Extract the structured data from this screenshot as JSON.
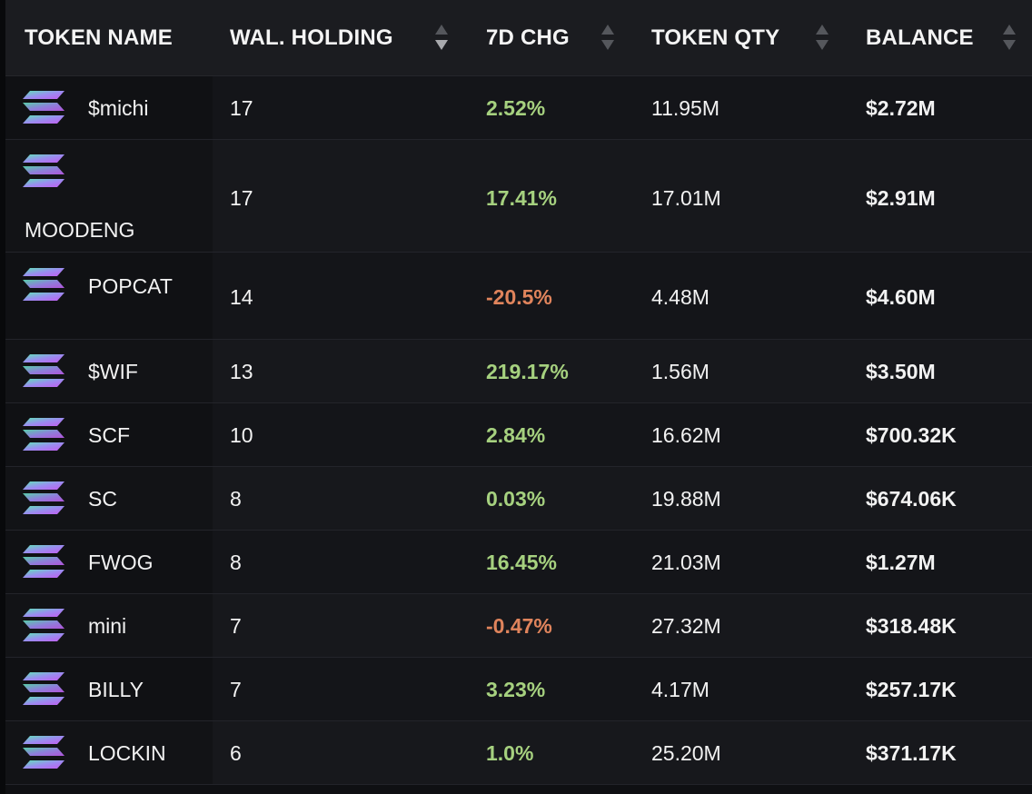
{
  "table": {
    "columns": [
      {
        "label": "TOKEN NAME",
        "sortable": false
      },
      {
        "label": "WAL. HOLDING",
        "sortable": true,
        "sorted": "desc"
      },
      {
        "label": "7D CHG",
        "sortable": true
      },
      {
        "label": "TOKEN QTY",
        "sortable": true
      },
      {
        "label": "BALANCE",
        "sortable": true
      }
    ],
    "rows": [
      {
        "name": "$michi",
        "holding": "17",
        "change": "2.52%",
        "trend": "up",
        "qty": "11.95M",
        "balance": "$2.72M"
      },
      {
        "name": "MOODENG",
        "holding": "17",
        "change": "17.41%",
        "trend": "up",
        "qty": "17.01M",
        "balance": "$2.91M"
      },
      {
        "name": "POPCAT",
        "holding": "14",
        "change": "-20.5%",
        "trend": "down",
        "qty": "4.48M",
        "balance": "$4.60M"
      },
      {
        "name": "$WIF",
        "holding": "13",
        "change": "219.17%",
        "trend": "up",
        "qty": "1.56M",
        "balance": "$3.50M"
      },
      {
        "name": "SCF",
        "holding": "10",
        "change": "2.84%",
        "trend": "up",
        "qty": "16.62M",
        "balance": "$700.32K"
      },
      {
        "name": "SC",
        "holding": "8",
        "change": "0.03%",
        "trend": "up",
        "qty": "19.88M",
        "balance": "$674.06K"
      },
      {
        "name": "FWOG",
        "holding": "8",
        "change": "16.45%",
        "trend": "up",
        "qty": "21.03M",
        "balance": "$1.27M"
      },
      {
        "name": "mini",
        "holding": "7",
        "change": "-0.47%",
        "trend": "down",
        "qty": "27.32M",
        "balance": "$318.48K"
      },
      {
        "name": "BILLY",
        "holding": "7",
        "change": "3.23%",
        "trend": "up",
        "qty": "4.17M",
        "balance": "$257.17K"
      },
      {
        "name": "LOCKIN",
        "holding": "6",
        "change": "1.0%",
        "trend": "up",
        "qty": "25.20M",
        "balance": "$371.17K"
      }
    ]
  },
  "icons": {
    "token_logo": "solana-logo-icon",
    "sort": "sort-arrows-icon"
  },
  "colors": {
    "positive": "#a6d17f",
    "negative": "#e0845c",
    "header_bg": "#1b1c20",
    "row_bg": "#141519"
  }
}
